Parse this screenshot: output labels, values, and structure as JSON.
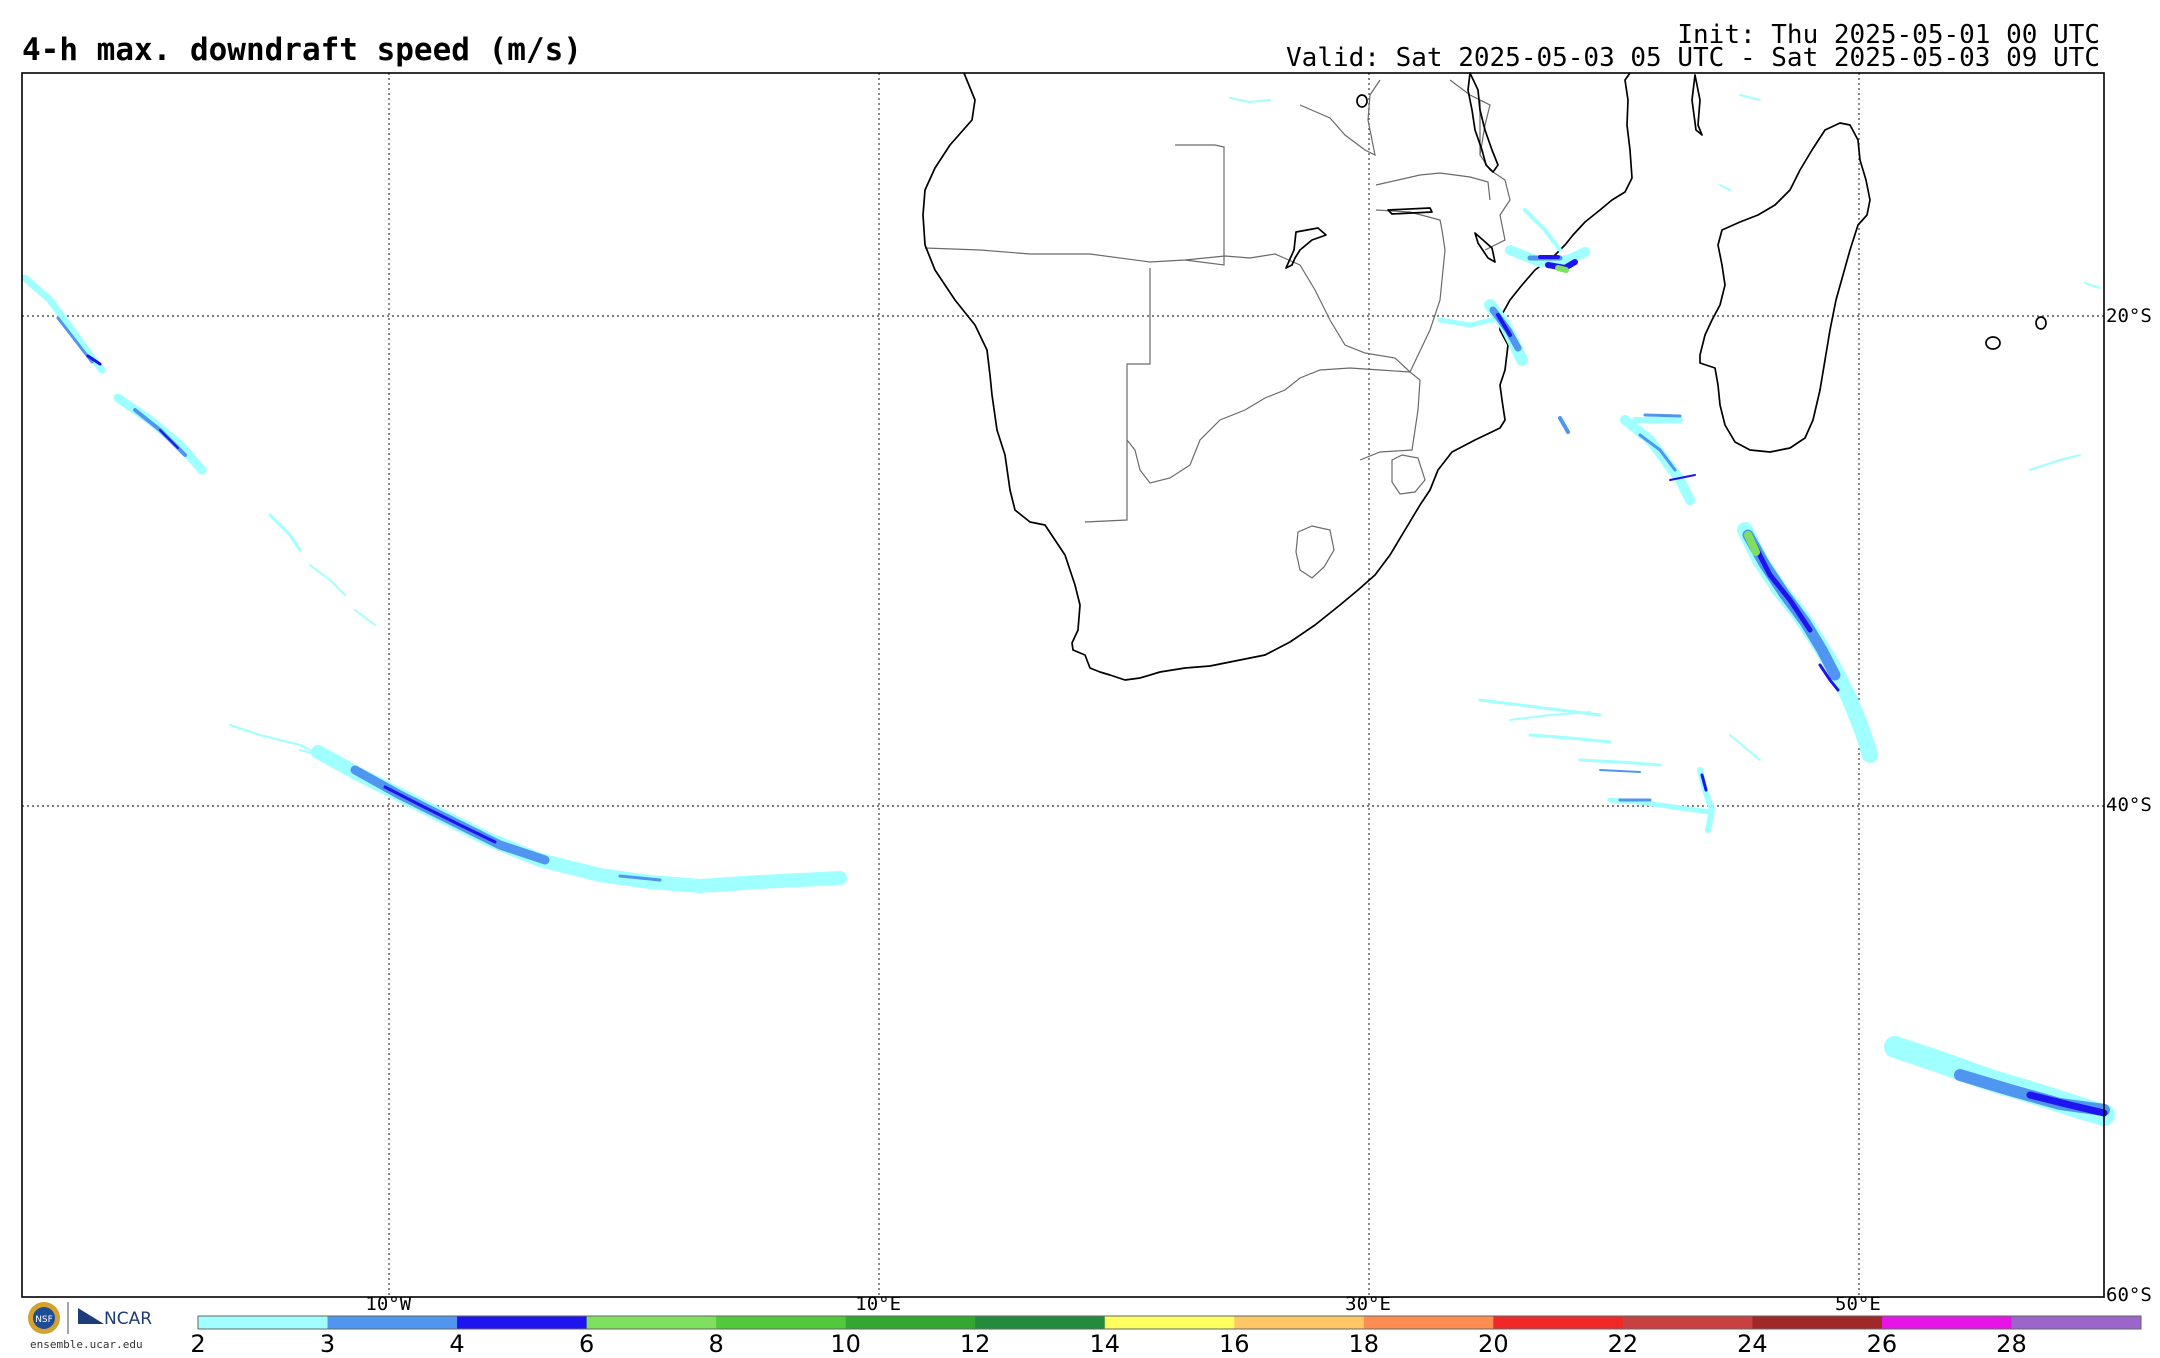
{
  "header": {
    "title": "4-h max. downdraft speed (m/s)",
    "init": "Init: Thu 2025-05-01 00 UTC",
    "valid": "Valid: Sat 2025-05-03 05 UTC - Sat 2025-05-03 09 UTC"
  },
  "map": {
    "projection": "equirectangular",
    "lon_range": [
      -25,
      60
    ],
    "lat_range": [
      -60,
      -10
    ],
    "lat_labels": [
      {
        "lat": -20,
        "label": "20°S"
      },
      {
        "lat": -40,
        "label": "40°S"
      },
      {
        "lat": -60,
        "label": "60°S"
      }
    ],
    "lon_labels": [
      {
        "lon": -10,
        "label": "10°W"
      },
      {
        "lon": 10,
        "label": "10°E"
      },
      {
        "lon": 30,
        "label": "30°E"
      },
      {
        "lon": 50,
        "label": "50°E"
      }
    ]
  },
  "colorbar": {
    "ticks": [
      "2",
      "3",
      "4",
      "6",
      "8",
      "10",
      "12",
      "14",
      "16",
      "18",
      "20",
      "22",
      "24",
      "26",
      "28"
    ],
    "colors": [
      "#a0ffff",
      "#5096f0",
      "#1e14f0",
      "#7ee05e",
      "#52c83c",
      "#32a832",
      "#228b3c",
      "#ffff60",
      "#ffc864",
      "#ff8c50",
      "#f02828",
      "#c84040",
      "#a02828",
      "#e614e6",
      "#9b66cc"
    ]
  },
  "logos": {
    "org1": "NSF",
    "org2": "NCAR",
    "site": "ensemble.ucar.edu"
  }
}
